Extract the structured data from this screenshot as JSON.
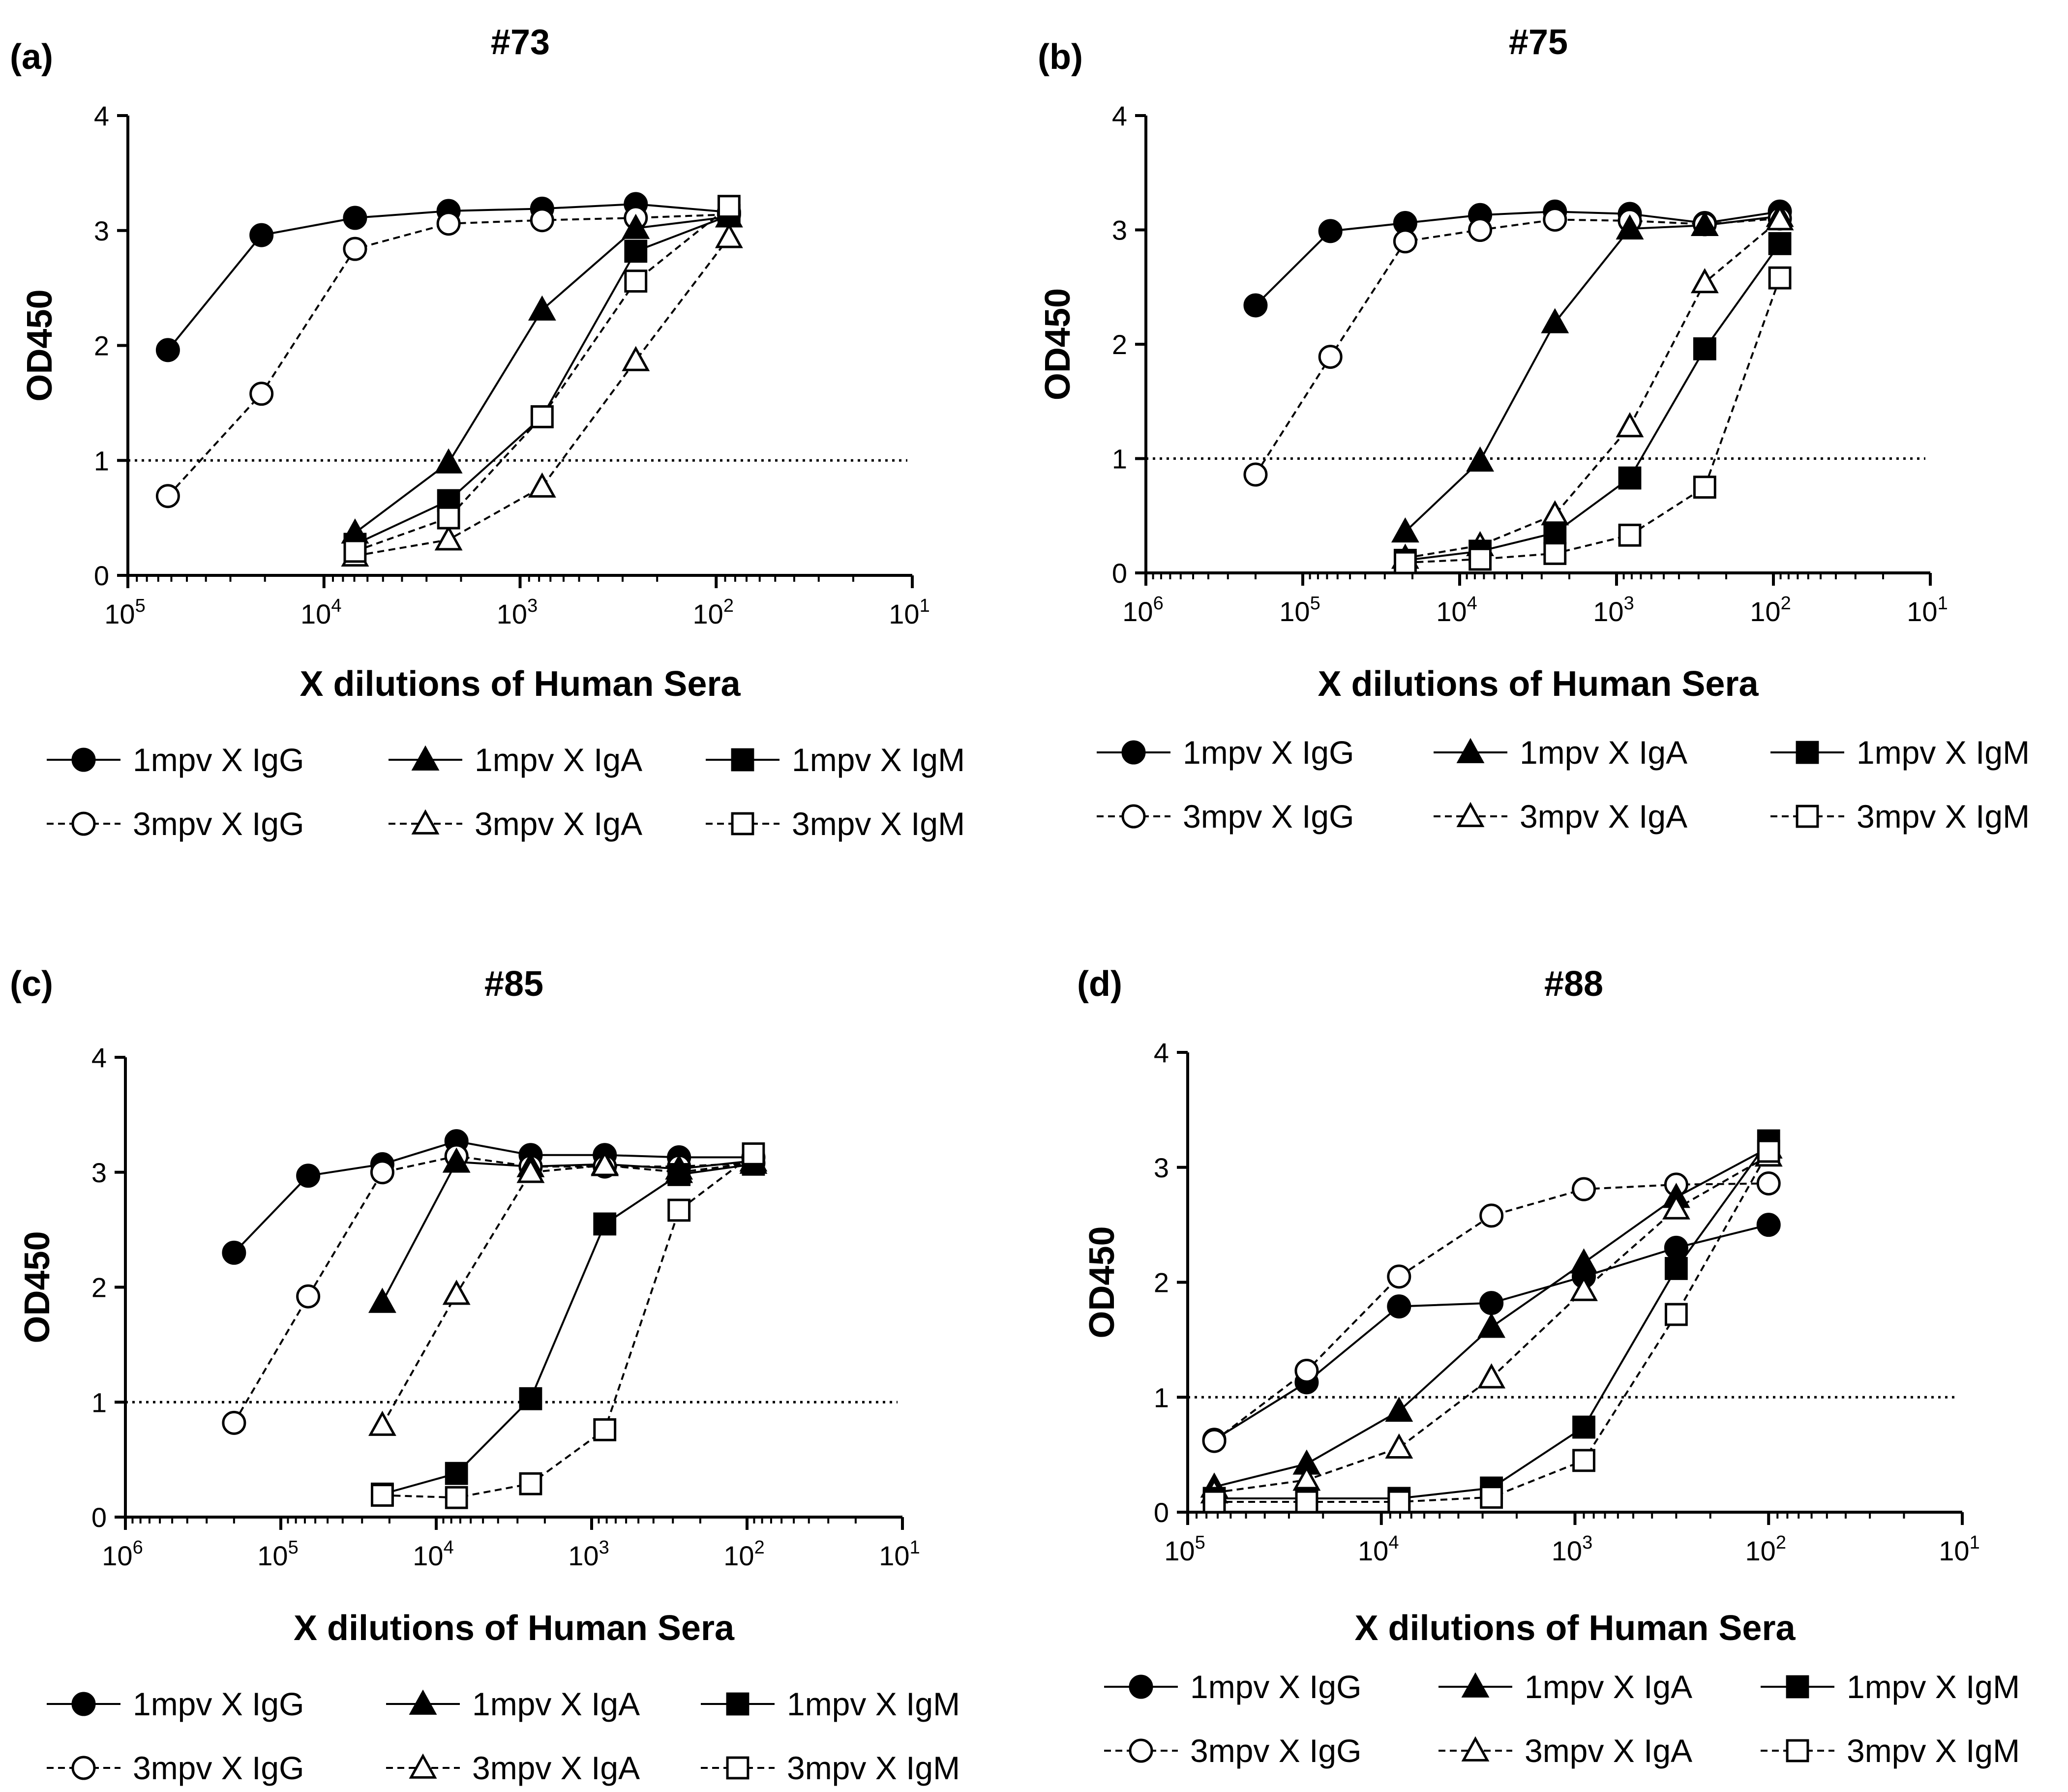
{
  "figure": {
    "series_styles": [
      {
        "key": "IgG1",
        "marker": "circle",
        "filled": true,
        "dashed": false
      },
      {
        "key": "IgG3",
        "marker": "circle",
        "filled": false,
        "dashed": true
      },
      {
        "key": "IgA1",
        "marker": "triangle",
        "filled": true,
        "dashed": false
      },
      {
        "key": "IgA3",
        "marker": "triangle",
        "filled": false,
        "dashed": true
      },
      {
        "key": "IgM1",
        "marker": "square",
        "filled": true,
        "dashed": false
      },
      {
        "key": "IgM3",
        "marker": "square",
        "filled": false,
        "dashed": true
      }
    ],
    "colors": {
      "line": "#000000",
      "background": "#ffffff"
    }
  },
  "chart_data": [
    {
      "type": "line",
      "panel_label": "(a)",
      "title": "#73",
      "xlabel": "X dilutions of  Human Sera",
      "ylabel": "OD450",
      "x_scale": "log10-reversed",
      "xlim": [
        100000,
        10
      ],
      "ylim": [
        0,
        4
      ],
      "x_ticks": [
        {
          "base": "10",
          "exp": "5"
        },
        {
          "base": "10",
          "exp": "4"
        },
        {
          "base": "10",
          "exp": "3"
        },
        {
          "base": "10",
          "exp": "2"
        },
        {
          "base": "10",
          "exp": "1"
        }
      ],
      "y_ticks": [
        "0",
        "1",
        "2",
        "3",
        "4"
      ],
      "reference_line_y": 1,
      "series": [
        {
          "key": "IgG1",
          "name": "1mpv X IgG",
          "x": [
            62500,
            20833,
            6944,
            2315,
            772,
            257,
            86
          ],
          "y": [
            1.96,
            2.96,
            3.11,
            3.17,
            3.19,
            3.23,
            3.16
          ]
        },
        {
          "key": "IgG3",
          "name": "3mpv X IgG",
          "x": [
            62500,
            20833,
            6944,
            2315,
            772,
            257,
            86
          ],
          "y": [
            0.69,
            1.58,
            2.84,
            3.06,
            3.09,
            3.11,
            3.14
          ]
        },
        {
          "key": "IgA1",
          "name": "1mpv X IgA",
          "x": [
            6944,
            2315,
            772,
            257,
            86
          ],
          "y": [
            0.37,
            0.98,
            2.31,
            3.02,
            3.12
          ]
        },
        {
          "key": "IgA3",
          "name": "3mpv X IgA",
          "x": [
            6944,
            2315,
            772,
            257,
            86
          ],
          "y": [
            0.17,
            0.31,
            0.77,
            1.87,
            2.94
          ]
        },
        {
          "key": "IgM1",
          "name": "1mpv X IgM",
          "x": [
            6944,
            2315,
            772,
            257,
            86
          ],
          "y": [
            0.27,
            0.65,
            1.38,
            2.82,
            3.13
          ]
        },
        {
          "key": "IgM3",
          "name": "3mpv X IgM",
          "x": [
            6944,
            2315,
            772,
            257,
            86
          ],
          "y": [
            0.21,
            0.5,
            1.38,
            2.56,
            3.21
          ]
        }
      ]
    },
    {
      "type": "line",
      "panel_label": "(b)",
      "title": "#75",
      "xlabel": "X dilutions of  Human Sera",
      "ylabel": "OD450",
      "x_scale": "log10-reversed",
      "xlim": [
        1000000,
        10
      ],
      "ylim": [
        0,
        4
      ],
      "x_ticks": [
        {
          "base": "10",
          "exp": "6"
        },
        {
          "base": "10",
          "exp": "5"
        },
        {
          "base": "10",
          "exp": "4"
        },
        {
          "base": "10",
          "exp": "3"
        },
        {
          "base": "10",
          "exp": "2"
        },
        {
          "base": "10",
          "exp": "1"
        }
      ],
      "y_ticks": [
        "0",
        "1",
        "2",
        "3",
        "4"
      ],
      "reference_line_y": 1,
      "series": [
        {
          "key": "IgG1",
          "name": "1mpv X IgG",
          "x": [
            200000,
            66667,
            22222,
            7407,
            2469,
            823,
            274,
            91
          ],
          "y": [
            2.34,
            2.99,
            3.06,
            3.13,
            3.16,
            3.14,
            3.06,
            3.16
          ]
        },
        {
          "key": "IgG3",
          "name": "3mpv X IgG",
          "x": [
            200000,
            66667,
            22222,
            7407,
            2469,
            823,
            274,
            91
          ],
          "y": [
            0.86,
            1.89,
            2.9,
            3.0,
            3.09,
            3.08,
            3.05,
            3.1
          ]
        },
        {
          "key": "IgA1",
          "name": "1mpv X IgA",
          "x": [
            22222,
            7407,
            2469,
            823,
            274,
            91
          ],
          "y": [
            0.36,
            0.98,
            2.19,
            3.01,
            3.04,
            3.12
          ]
        },
        {
          "key": "IgA3",
          "name": "3mpv X IgA",
          "x": [
            22222,
            7407,
            2469,
            823,
            274,
            91
          ],
          "y": [
            0.13,
            0.24,
            0.51,
            1.28,
            2.54,
            3.09
          ]
        },
        {
          "key": "IgM1",
          "name": "1mpv X IgM",
          "x": [
            22222,
            7407,
            2469,
            823,
            274,
            91
          ],
          "y": [
            0.11,
            0.19,
            0.35,
            0.83,
            1.96,
            2.88
          ]
        },
        {
          "key": "IgM3",
          "name": "3mpv X IgM",
          "x": [
            22222,
            7407,
            2469,
            823,
            274,
            91
          ],
          "y": [
            0.09,
            0.12,
            0.17,
            0.33,
            0.75,
            2.58
          ]
        }
      ]
    },
    {
      "type": "line",
      "panel_label": "(c)",
      "title": "#85",
      "xlabel": "X dilutions of  Human Sera",
      "ylabel": "OD450",
      "x_scale": "log10-reversed",
      "xlim": [
        1000000,
        10
      ],
      "ylim": [
        0,
        4
      ],
      "x_ticks": [
        {
          "base": "10",
          "exp": "6"
        },
        {
          "base": "10",
          "exp": "5"
        },
        {
          "base": "10",
          "exp": "4"
        },
        {
          "base": "10",
          "exp": "3"
        },
        {
          "base": "10",
          "exp": "2"
        },
        {
          "base": "10",
          "exp": "1"
        }
      ],
      "y_ticks": [
        "0",
        "1",
        "2",
        "3",
        "4"
      ],
      "reference_line_y": 1,
      "series": [
        {
          "key": "IgG1",
          "name": "1mpv X IgG",
          "x": [
            200000,
            66667,
            22222,
            7407,
            2469,
            823,
            274,
            91
          ],
          "y": [
            2.3,
            2.97,
            3.07,
            3.27,
            3.15,
            3.15,
            3.13,
            3.13
          ]
        },
        {
          "key": "IgG3",
          "name": "3mpv X IgG",
          "x": [
            200000,
            66667,
            22222,
            7407,
            2469,
            823,
            274,
            91
          ],
          "y": [
            0.82,
            1.92,
            3.0,
            3.14,
            3.05,
            3.05,
            3.05,
            3.08
          ]
        },
        {
          "key": "IgA1",
          "name": "1mpv X IgA",
          "x": [
            22222,
            7407,
            2469,
            823,
            274,
            91
          ],
          "y": [
            1.87,
            3.09,
            3.05,
            3.07,
            3.03,
            3.1
          ]
        },
        {
          "key": "IgA3",
          "name": "3mpv X IgA",
          "x": [
            22222,
            7407,
            2469,
            823,
            274,
            91
          ],
          "y": [
            0.8,
            1.94,
            3.0,
            3.06,
            3.0,
            3.08
          ]
        },
        {
          "key": "IgM1",
          "name": "1mpv X IgM",
          "x": [
            22222,
            7407,
            2469,
            823,
            274,
            91
          ],
          "y": [
            0.2,
            0.38,
            1.03,
            2.55,
            2.98,
            3.07
          ]
        },
        {
          "key": "IgM3",
          "name": "3mpv X IgM",
          "x": [
            22222,
            7407,
            2469,
            823,
            274,
            91
          ],
          "y": [
            0.19,
            0.17,
            0.29,
            0.76,
            2.67,
            3.16
          ]
        }
      ]
    },
    {
      "type": "line",
      "panel_label": "(d)",
      "title": "#88",
      "xlabel": "X dilutions of  Human Sera",
      "ylabel": "OD450",
      "x_scale": "log10-reversed",
      "xlim": [
        100000,
        10
      ],
      "ylim": [
        0,
        4
      ],
      "x_ticks": [
        {
          "base": "10",
          "exp": "5"
        },
        {
          "base": "10",
          "exp": "4"
        },
        {
          "base": "10",
          "exp": "3"
        },
        {
          "base": "10",
          "exp": "2"
        },
        {
          "base": "10",
          "exp": "1"
        }
      ],
      "y_ticks": [
        "0",
        "1",
        "2",
        "3",
        "4"
      ],
      "reference_line_y": 1,
      "series": [
        {
          "key": "IgG1",
          "name": "1mpv X IgG",
          "x": [
            72900,
            24300,
            8100,
            2700,
            900,
            300,
            100
          ],
          "y": [
            0.63,
            1.13,
            1.79,
            1.82,
            2.05,
            2.3,
            2.5
          ]
        },
        {
          "key": "IgG3",
          "name": "3mpv X IgG",
          "x": [
            72900,
            24300,
            8100,
            2700,
            900,
            300,
            100
          ],
          "y": [
            0.62,
            1.23,
            2.05,
            2.58,
            2.81,
            2.85,
            2.86
          ]
        },
        {
          "key": "IgA1",
          "name": "1mpv X IgA",
          "x": [
            72900,
            24300,
            8100,
            2700,
            900,
            300,
            100
          ],
          "y": [
            0.22,
            0.42,
            0.88,
            1.61,
            2.17,
            2.74,
            3.17
          ]
        },
        {
          "key": "IgA3",
          "name": "3mpv X IgA",
          "x": [
            72900,
            24300,
            8100,
            2700,
            900,
            300,
            100
          ],
          "y": [
            0.17,
            0.28,
            0.56,
            1.17,
            1.93,
            2.64,
            3.1
          ]
        },
        {
          "key": "IgM1",
          "name": "1mpv X IgM",
          "x": [
            72900,
            24300,
            8100,
            2700,
            900,
            300,
            100
          ],
          "y": [
            0.12,
            0.12,
            0.12,
            0.21,
            0.74,
            2.12,
            3.23
          ]
        },
        {
          "key": "IgM3",
          "name": "3mpv X IgM",
          "x": [
            72900,
            24300,
            8100,
            2700,
            900,
            300,
            100
          ],
          "y": [
            0.09,
            0.09,
            0.09,
            0.13,
            0.45,
            1.72,
            3.14
          ]
        }
      ]
    }
  ]
}
